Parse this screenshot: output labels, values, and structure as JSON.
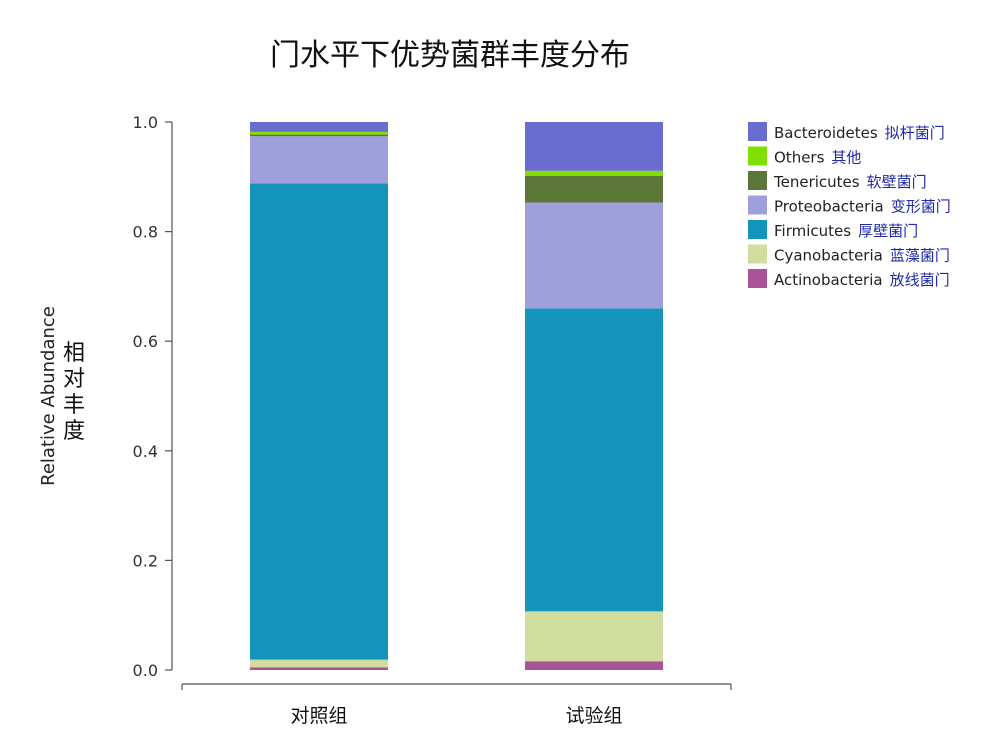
{
  "chart_data": {
    "type": "bar",
    "stacked": true,
    "title": "门水平下优势菌群丰度分布",
    "ylabel": "Relative Abundance",
    "ylabel_cn": "相对丰度",
    "categories": [
      "对照组",
      "试验组"
    ],
    "ylim": [
      0,
      1.0
    ],
    "yticks": [
      "0.0",
      "0.2",
      "0.4",
      "0.6",
      "0.8",
      "1.0"
    ],
    "legend_position": "right",
    "series": [
      {
        "name": "Actinobacteria",
        "name_cn": "放线菌门",
        "color": "#a85396",
        "values": [
          0.005,
          0.016
        ]
      },
      {
        "name": "Cyanobacteria",
        "name_cn": "蓝藻菌门",
        "color": "#d1dd9f",
        "values": [
          0.014,
          0.091
        ]
      },
      {
        "name": "Firmicutes",
        "name_cn": "厚壁菌门",
        "color": "#1493bb",
        "values": [
          0.869,
          0.553
        ]
      },
      {
        "name": "Proteobacteria",
        "name_cn": "变形菌门",
        "color": "#9f9fdc",
        "values": [
          0.086,
          0.193
        ]
      },
      {
        "name": "Tenericutes",
        "name_cn": "软壁菌门",
        "color": "#5c7538",
        "values": [
          0.003,
          0.049
        ]
      },
      {
        "name": "Others",
        "name_cn": "其他",
        "color": "#7fe000",
        "values": [
          0.005,
          0.009
        ]
      },
      {
        "name": "Bacteroidetes",
        "name_cn": "拟杆菌门",
        "color": "#6a6ccf",
        "values": [
          0.018,
          0.089
        ]
      }
    ],
    "legend_order": [
      "Bacteroidetes",
      "Others",
      "Tenericutes",
      "Proteobacteria",
      "Firmicutes",
      "Cyanobacteria",
      "Actinobacteria"
    ]
  }
}
